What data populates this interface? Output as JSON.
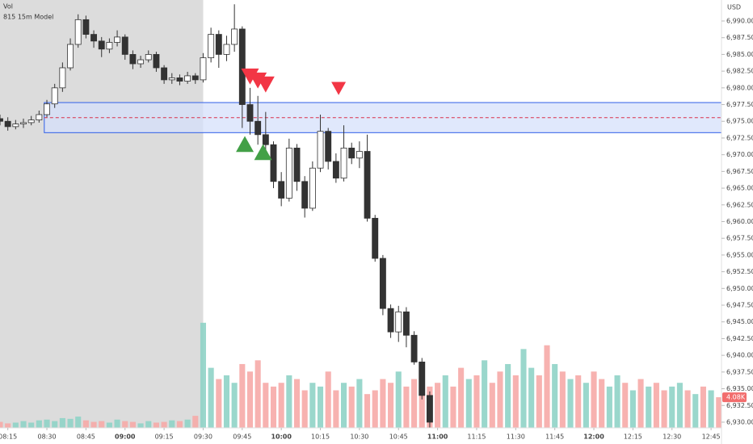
{
  "chart_data": {
    "type": "candlestick",
    "currency": "USD",
    "volume_title": "Vol",
    "indicator_title": "815 15m Model",
    "xlim": [
      "08:12",
      "12:49"
    ],
    "xticks": [
      "08:15",
      "08:30",
      "08:45",
      "09:00",
      "09:15",
      "09:30",
      "09:45",
      "10:00",
      "10:15",
      "10:30",
      "10:45",
      "11:00",
      "11:15",
      "11:30",
      "11:45",
      "12:00",
      "12:15",
      "12:30",
      "12:45"
    ],
    "ylim": [
      6929.15,
      6993.14
    ],
    "yticks": [
      {
        "value": 6930,
        "label": "6,930.00"
      },
      {
        "value": 6932.5,
        "label": "6,932.50"
      },
      {
        "value": 6935,
        "label": "6,935.00"
      },
      {
        "value": 6937.5,
        "label": "6,937.50"
      },
      {
        "value": 6940,
        "label": "6,940.00"
      },
      {
        "value": 6942.5,
        "label": "6,942.50"
      },
      {
        "value": 6945,
        "label": "6,945.00"
      },
      {
        "value": 6947.5,
        "label": "6,947.50"
      },
      {
        "value": 6950,
        "label": "6,950.00"
      },
      {
        "value": 6952.5,
        "label": "6,952.50"
      },
      {
        "value": 6955,
        "label": "6,955.00"
      },
      {
        "value": 6957.5,
        "label": "6,957.50"
      },
      {
        "value": 6960,
        "label": "6,960.00"
      },
      {
        "value": 6962.5,
        "label": "6,962.50"
      },
      {
        "value": 6965,
        "label": "6,965.00"
      },
      {
        "value": 6967.5,
        "label": "6,967.50"
      },
      {
        "value": 6970,
        "label": "6,970.00"
      },
      {
        "value": 6972.5,
        "label": "6,972.50"
      },
      {
        "value": 6975,
        "label": "6,975.00"
      },
      {
        "value": 6977.5,
        "label": "6,977.50"
      },
      {
        "value": 6980,
        "label": "6,980.00"
      },
      {
        "value": 6982.5,
        "label": "6,982.50"
      },
      {
        "value": 6985,
        "label": "6,985.00"
      },
      {
        "value": 6987.5,
        "label": "6,987.50"
      },
      {
        "value": 6990,
        "label": "6,990.00"
      }
    ],
    "shaded_until": "09:30",
    "shade_color": "#dcdcdc",
    "candle_colors": {
      "up": "#ffffff",
      "down": "#333333",
      "outline": "#333333"
    },
    "candles": {
      "x": [
        "08:12",
        "08:15",
        "08:18",
        "08:21",
        "08:24",
        "08:27",
        "08:30",
        "08:33",
        "08:36",
        "08:39",
        "08:42",
        "08:45",
        "08:48",
        "08:51",
        "08:54",
        "08:57",
        "09:00",
        "09:03",
        "09:06",
        "09:09",
        "09:12",
        "09:15",
        "09:18",
        "09:21",
        "09:24",
        "09:27",
        "09:30",
        "09:33",
        "09:36",
        "09:39",
        "09:42",
        "09:45",
        "09:48",
        "09:51",
        "09:54",
        "09:57",
        "10:00",
        "10:03",
        "10:06",
        "10:09",
        "10:12",
        "10:15",
        "10:18",
        "10:21",
        "10:24",
        "10:27",
        "10:30",
        "10:33",
        "10:36",
        "10:39",
        "10:42",
        "10:45",
        "10:48",
        "10:51",
        "10:54",
        "10:57"
      ],
      "open": [
        6975.4,
        6975.0,
        6974.2,
        6974.6,
        6974.8,
        6975.2,
        6976.0,
        6977.6,
        6980.0,
        6983.0,
        6986.5,
        6990.2,
        6988.0,
        6987.0,
        6985.8,
        6986.8,
        6987.6,
        6985.0,
        6983.6,
        6984.2,
        6985.0,
        6983.0,
        6981.2,
        6981.5,
        6981.0,
        6981.8,
        6981.2,
        6984.5,
        6988.0,
        6985.0,
        6986.5,
        6988.8,
        6977.5,
        6975.0,
        6973.0,
        6971.5,
        6966.0,
        6963.5,
        6971.0,
        6966.0,
        6962.0,
        6968.0,
        6973.5,
        6969.0,
        6966.5,
        6971.0,
        6969.5,
        6970.5,
        6960.5,
        6954.5,
        6947.0,
        6943.5,
        6946.5,
        6943.0,
        6939.0,
        6934.0
      ],
      "high": [
        6976.0,
        6975.6,
        6975.2,
        6975.4,
        6975.8,
        6976.6,
        6978.2,
        6980.6,
        6983.8,
        6987.4,
        6991.0,
        6990.8,
        6988.6,
        6987.6,
        6987.4,
        6988.6,
        6988.0,
        6985.6,
        6984.8,
        6985.6,
        6985.4,
        6983.4,
        6982.2,
        6982.0,
        6982.4,
        6982.2,
        6985.2,
        6989.0,
        6988.6,
        6987.8,
        6992.5,
        6989.2,
        6980.0,
        6978.8,
        6976.4,
        6972.0,
        6967.4,
        6972.4,
        6971.6,
        6966.8,
        6969.0,
        6976.0,
        6974.0,
        6970.2,
        6974.4,
        6971.8,
        6972.0,
        6973.0,
        6961.0,
        6955.0,
        6947.6,
        6947.4,
        6947.2,
        6943.6,
        6939.6,
        6934.6
      ],
      "low": [
        6974.4,
        6973.6,
        6973.8,
        6974.0,
        6974.4,
        6974.8,
        6975.6,
        6977.0,
        6979.4,
        6982.6,
        6986.0,
        6987.4,
        6986.0,
        6984.6,
        6985.2,
        6986.2,
        6984.2,
        6982.8,
        6983.0,
        6983.8,
        6982.4,
        6980.6,
        6980.6,
        6980.4,
        6980.6,
        6980.6,
        6980.8,
        6983.8,
        6983.0,
        6984.0,
        6985.4,
        6974.0,
        6973.0,
        6971.5,
        6970.0,
        6965.0,
        6962.3,
        6963.0,
        6964.6,
        6960.6,
        6961.6,
        6967.4,
        6967.8,
        6965.8,
        6966.0,
        6968.6,
        6968.0,
        6960.0,
        6954.0,
        6946.0,
        6942.6,
        6942.0,
        6941.2,
        6938.6,
        6933.4,
        6929.2
      ],
      "close": [
        6975.0,
        6974.2,
        6974.6,
        6974.8,
        6975.2,
        6976.0,
        6977.6,
        6980.0,
        6983.0,
        6986.5,
        6990.2,
        6988.0,
        6987.0,
        6985.8,
        6986.8,
        6987.6,
        6985.0,
        6983.6,
        6984.2,
        6985.0,
        6983.0,
        6981.2,
        6981.5,
        6981.0,
        6981.8,
        6981.2,
        6984.5,
        6988.0,
        6985.0,
        6986.5,
        6988.8,
        6977.5,
        6975.0,
        6973.0,
        6971.5,
        6966.0,
        6963.5,
        6971.0,
        6966.0,
        6962.0,
        6968.0,
        6973.5,
        6969.0,
        6966.5,
        6971.0,
        6969.5,
        6970.5,
        6960.5,
        6954.5,
        6947.0,
        6943.5,
        6946.5,
        6943.0,
        6939.0,
        6934.0,
        6930.0
      ]
    },
    "volume": {
      "ylim": [
        0,
        57000
      ],
      "x": [
        "08:12",
        "08:15",
        "08:18",
        "08:21",
        "08:24",
        "08:27",
        "08:30",
        "08:33",
        "08:36",
        "08:39",
        "08:42",
        "08:45",
        "08:48",
        "08:51",
        "08:54",
        "08:57",
        "09:00",
        "09:03",
        "09:06",
        "09:09",
        "09:12",
        "09:15",
        "09:18",
        "09:21",
        "09:24",
        "09:27",
        "09:30",
        "09:33",
        "09:36",
        "09:39",
        "09:42",
        "09:45",
        "09:48",
        "09:51",
        "09:54",
        "09:57",
        "10:00",
        "10:03",
        "10:06",
        "10:09",
        "10:12",
        "10:15",
        "10:18",
        "10:21",
        "10:24",
        "10:27",
        "10:30",
        "10:33",
        "10:36",
        "10:39",
        "10:42",
        "10:45",
        "10:48",
        "10:51",
        "10:54",
        "10:57",
        "11:00",
        "11:03",
        "11:06",
        "11:09",
        "11:12",
        "11:15",
        "11:18",
        "11:21",
        "11:24",
        "11:27",
        "11:30",
        "11:33",
        "11:36",
        "11:39",
        "11:42",
        "11:45",
        "11:48",
        "11:51",
        "11:54",
        "11:57",
        "12:00",
        "12:03",
        "12:06",
        "12:09",
        "12:12",
        "12:15",
        "12:18",
        "12:21",
        "12:24",
        "12:27",
        "12:30",
        "12:33",
        "12:36",
        "12:39",
        "12:42",
        "12:45",
        "12:48"
      ],
      "values": [
        800,
        600,
        700,
        900,
        700,
        1000,
        1100,
        900,
        1300,
        1200,
        1500,
        1000,
        800,
        900,
        700,
        1100,
        900,
        800,
        600,
        900,
        700,
        800,
        1000,
        900,
        1100,
        1600,
        14000,
        8000,
        6500,
        7000,
        6000,
        8500,
        7500,
        9000,
        6000,
        5500,
        6000,
        7000,
        6500,
        5000,
        6000,
        5500,
        7500,
        5000,
        6000,
        5500,
        6500,
        4500,
        5000,
        6500,
        6000,
        7500,
        5500,
        6500,
        5000,
        5500,
        6000,
        7000,
        5500,
        8000,
        6500,
        7000,
        9000,
        6000,
        7500,
        8500,
        7000,
        10500,
        8000,
        7000,
        11000,
        8500,
        7500,
        6500,
        7000,
        6000,
        7500,
        6500,
        5500,
        7000,
        6000,
        5000,
        6500,
        5500,
        6000,
        5000,
        5500,
        6000,
        5000,
        4500,
        5500,
        5000,
        4080
      ],
      "value_labels": [
        null,
        null,
        null,
        null,
        null,
        null,
        null,
        null,
        null,
        null,
        null,
        null,
        null,
        null,
        null,
        null,
        null,
        null,
        null,
        null,
        null,
        null,
        null,
        null,
        null,
        null,
        null,
        null,
        null,
        null,
        null,
        null,
        null,
        null,
        null,
        null,
        null,
        null,
        null,
        null,
        null,
        null,
        null,
        null,
        null,
        null,
        null,
        null,
        null,
        null,
        null,
        null,
        null,
        null,
        null,
        null,
        null,
        null,
        null,
        null,
        null,
        null,
        null,
        null,
        null,
        null,
        null,
        null,
        null,
        null,
        null,
        null,
        null,
        null,
        null,
        null,
        null,
        null,
        null,
        null,
        null,
        null,
        null,
        null,
        null,
        null,
        null,
        null,
        null,
        null,
        null,
        null,
        "4.08K"
      ],
      "colors": [
        "#f6aaa7",
        "#f6aaa7",
        "#8fd3c6",
        "#8fd3c6",
        "#8fd3c6",
        "#8fd3c6",
        "#8fd3c6",
        "#8fd3c6",
        "#8fd3c6",
        "#8fd3c6",
        "#8fd3c6",
        "#f6aaa7",
        "#f6aaa7",
        "#f6aaa7",
        "#8fd3c6",
        "#8fd3c6",
        "#f6aaa7",
        "#f6aaa7",
        "#8fd3c6",
        "#8fd3c6",
        "#f6aaa7",
        "#f6aaa7",
        "#8fd3c6",
        "#f6aaa7",
        "#8fd3c6",
        "#f6aaa7",
        "#8fd3c6",
        "#8fd3c6",
        "#f6aaa7",
        "#8fd3c6",
        "#8fd3c6",
        "#f6aaa7",
        "#f6aaa7",
        "#f6aaa7",
        "#f6aaa7",
        "#f6aaa7",
        "#f6aaa7",
        "#8fd3c6",
        "#f6aaa7",
        "#f6aaa7",
        "#8fd3c6",
        "#8fd3c6",
        "#f6aaa7",
        "#f6aaa7",
        "#8fd3c6",
        "#f6aaa7",
        "#8fd3c6",
        "#f6aaa7",
        "#f6aaa7",
        "#f6aaa7",
        "#f6aaa7",
        "#8fd3c6",
        "#f6aaa7",
        "#f6aaa7",
        "#f6aaa7",
        "#f6aaa7",
        "#f6aaa7",
        "#8fd3c6",
        "#f6aaa7",
        "#f6aaa7",
        "#8fd3c6",
        "#f6aaa7",
        "#8fd3c6",
        "#f6aaa7",
        "#f6aaa7",
        "#8fd3c6",
        "#f6aaa7",
        "#8fd3c6",
        "#8fd3c6",
        "#f6aaa7",
        "#f6aaa7",
        "#8fd3c6",
        "#f6aaa7",
        "#8fd3c6",
        "#f6aaa7",
        "#8fd3c6",
        "#f6aaa7",
        "#f6aaa7",
        "#8fd3c6",
        "#8fd3c6",
        "#f6aaa7",
        "#8fd3c6",
        "#f6aaa7",
        "#8fd3c6",
        "#f6aaa7",
        "#f6aaa7",
        "#8fd3c6",
        "#8fd3c6",
        "#f6aaa7",
        "#8fd3c6",
        "#f6aaa7",
        "#8fd3c6",
        "#f6aaa7"
      ],
      "label_color": "#f26d6d"
    },
    "zone": {
      "start": "08:29",
      "top": 6977.8,
      "bottom": 6973.3,
      "fill": "#d6e0fb",
      "border": "#2f5ee8",
      "midline_color": "#d9304a"
    },
    "markers": {
      "x": [
        "09:48",
        "09:51",
        "09:54",
        "10:22",
        "09:46",
        "09:53"
      ],
      "y": [
        6981.7,
        6981.1,
        6980.5,
        6979.9,
        6971.6,
        6970.4
      ],
      "direction": [
        "down",
        "down",
        "down",
        "down",
        "up",
        "up"
      ],
      "colors": {
        "down": "#f23645",
        "up": "#43a047"
      }
    }
  }
}
